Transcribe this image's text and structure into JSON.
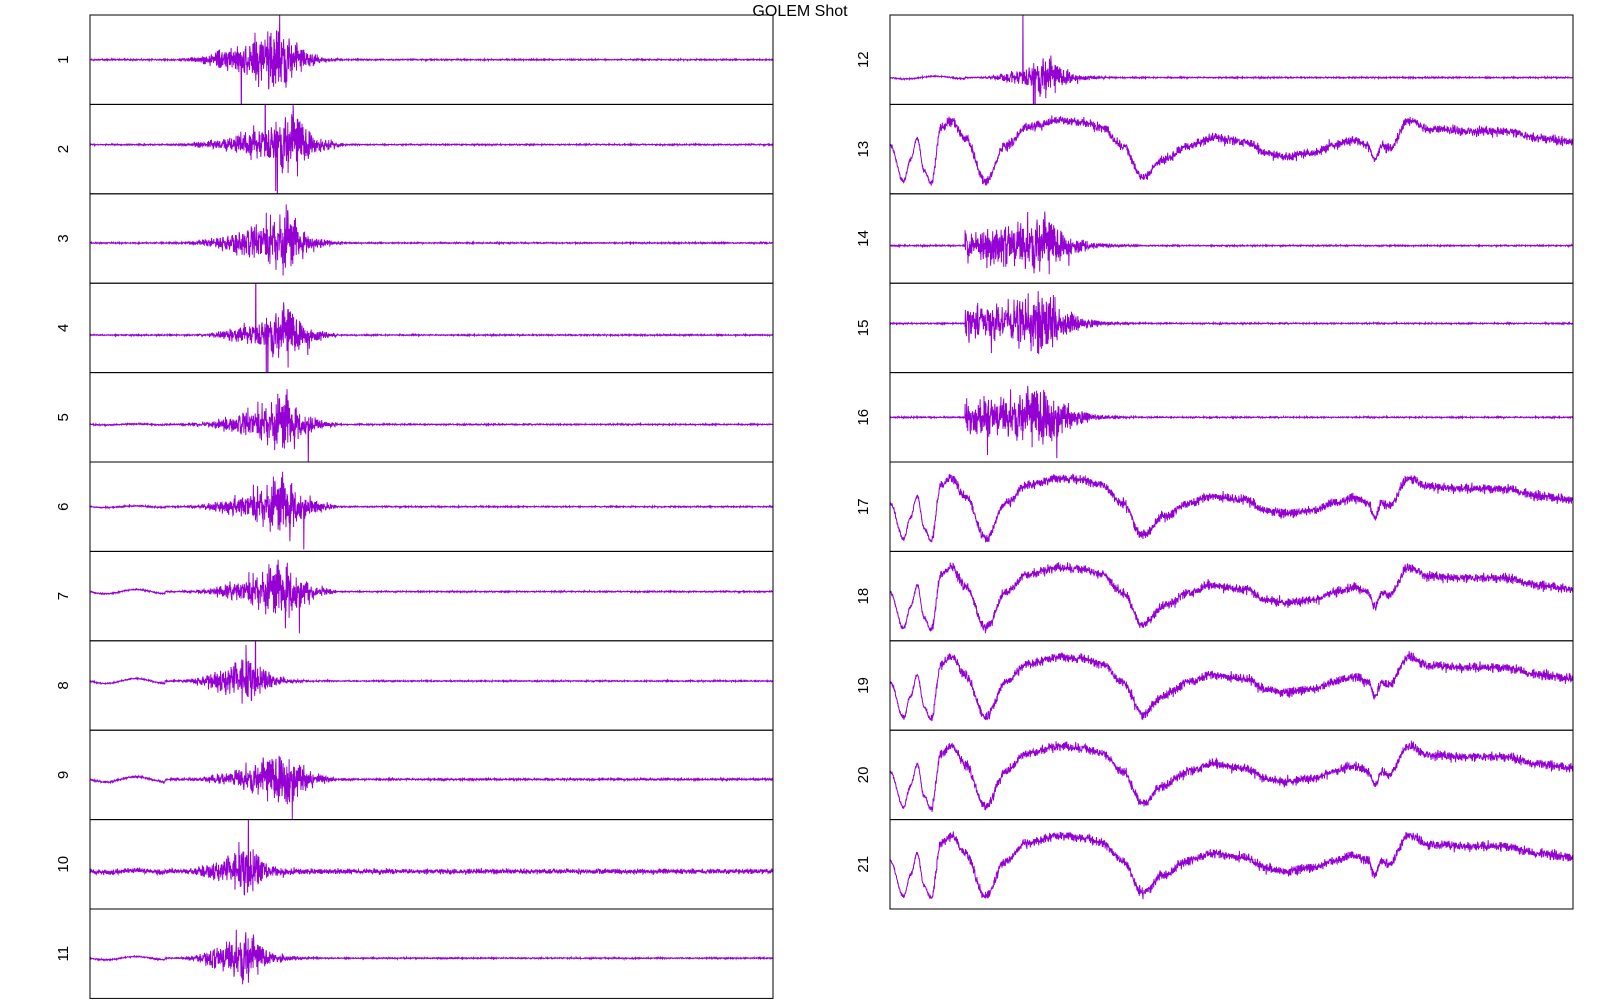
{
  "chart_data": {
    "type": "line",
    "title": "GOLEM Shot",
    "series_color": "#9400d3",
    "layout": "small-multiples",
    "grid": false,
    "legend": "none",
    "x_ticks_shown": false,
    "y_ticks_shown": false,
    "panels": [
      {
        "label": "1",
        "kind": "burst",
        "onset": 0.1,
        "peak": 0.28,
        "decay": 0.37,
        "amp": 0.5,
        "pre_wave": 0.0,
        "noise": 0.02,
        "y_level": 0.5
      },
      {
        "label": "2",
        "kind": "burst",
        "onset": 0.1,
        "peak": 0.3,
        "decay": 0.37,
        "amp": 0.48,
        "pre_wave": 0.0,
        "noise": 0.02,
        "y_level": 0.45
      },
      {
        "label": "3",
        "kind": "burst",
        "onset": 0.1,
        "peak": 0.29,
        "decay": 0.37,
        "amp": 0.45,
        "pre_wave": 0.0,
        "noise": 0.02,
        "y_level": 0.55
      },
      {
        "label": "4",
        "kind": "burst",
        "onset": 0.13,
        "peak": 0.29,
        "decay": 0.36,
        "amp": 0.42,
        "pre_wave": 0.0,
        "noise": 0.02,
        "y_level": 0.58
      },
      {
        "label": "5",
        "kind": "burst",
        "onset": 0.11,
        "peak": 0.29,
        "decay": 0.36,
        "amp": 0.42,
        "pre_wave": 0.02,
        "noise": 0.02,
        "y_level": 0.58
      },
      {
        "label": "6",
        "kind": "burst",
        "onset": 0.11,
        "peak": 0.29,
        "decay": 0.36,
        "amp": 0.45,
        "pre_wave": 0.03,
        "noise": 0.02,
        "y_level": 0.5
      },
      {
        "label": "7",
        "kind": "burst",
        "onset": 0.11,
        "peak": 0.29,
        "decay": 0.36,
        "amp": 0.45,
        "pre_wave": 0.08,
        "noise": 0.02,
        "y_level": 0.45
      },
      {
        "label": "8",
        "kind": "burst",
        "onset": 0.11,
        "peak": 0.23,
        "decay": 0.36,
        "amp": 0.4,
        "pre_wave": 0.09,
        "noise": 0.02,
        "y_level": 0.45
      },
      {
        "label": "9",
        "kind": "burst",
        "onset": 0.11,
        "peak": 0.29,
        "decay": 0.36,
        "amp": 0.42,
        "pre_wave": 0.1,
        "noise": 0.03,
        "y_level": 0.55
      },
      {
        "label": "10",
        "kind": "burst",
        "onset": 0.11,
        "peak": 0.23,
        "decay": 0.36,
        "amp": 0.4,
        "pre_wave": 0.04,
        "noise": 0.08,
        "y_level": 0.58
      },
      {
        "label": "11",
        "kind": "burst",
        "onset": 0.11,
        "peak": 0.23,
        "decay": 0.36,
        "amp": 0.4,
        "pre_wave": 0.06,
        "noise": 0.02,
        "y_level": 0.55
      },
      {
        "label": "12",
        "kind": "burst",
        "onset": 0.11,
        "peak": 0.23,
        "decay": 0.36,
        "amp": 0.32,
        "pre_wave": 0.05,
        "noise": 0.02,
        "y_level": 0.7
      },
      {
        "label": "13",
        "kind": "wave",
        "amp": 0.4,
        "noise": 0.04,
        "y_level": 0.5
      },
      {
        "label": "14",
        "kind": "burst",
        "onset": 0.11,
        "peak": 0.23,
        "decay": 0.36,
        "amp": 0.4,
        "pre_wave": 0.0,
        "noise": 0.02,
        "y_level": 0.58,
        "flat_burst": true
      },
      {
        "label": "15",
        "kind": "burst",
        "onset": 0.11,
        "peak": 0.23,
        "decay": 0.36,
        "amp": 0.42,
        "pre_wave": 0.0,
        "noise": 0.02,
        "y_level": 0.45,
        "flat_burst": true
      },
      {
        "label": "16",
        "kind": "burst",
        "onset": 0.11,
        "peak": 0.23,
        "decay": 0.36,
        "amp": 0.42,
        "pre_wave": 0.0,
        "noise": 0.02,
        "y_level": 0.5,
        "flat_burst": true
      },
      {
        "label": "17",
        "kind": "wave",
        "amp": 0.4,
        "noise": 0.04,
        "y_level": 0.5
      },
      {
        "label": "18",
        "kind": "wave",
        "amp": 0.4,
        "noise": 0.04,
        "y_level": 0.5
      },
      {
        "label": "19",
        "kind": "wave",
        "amp": 0.4,
        "noise": 0.04,
        "y_level": 0.5
      },
      {
        "label": "20",
        "kind": "wave",
        "amp": 0.4,
        "noise": 0.04,
        "y_level": 0.5
      },
      {
        "label": "21",
        "kind": "wave",
        "amp": 0.4,
        "noise": 0.04,
        "y_level": 0.5
      }
    ]
  }
}
